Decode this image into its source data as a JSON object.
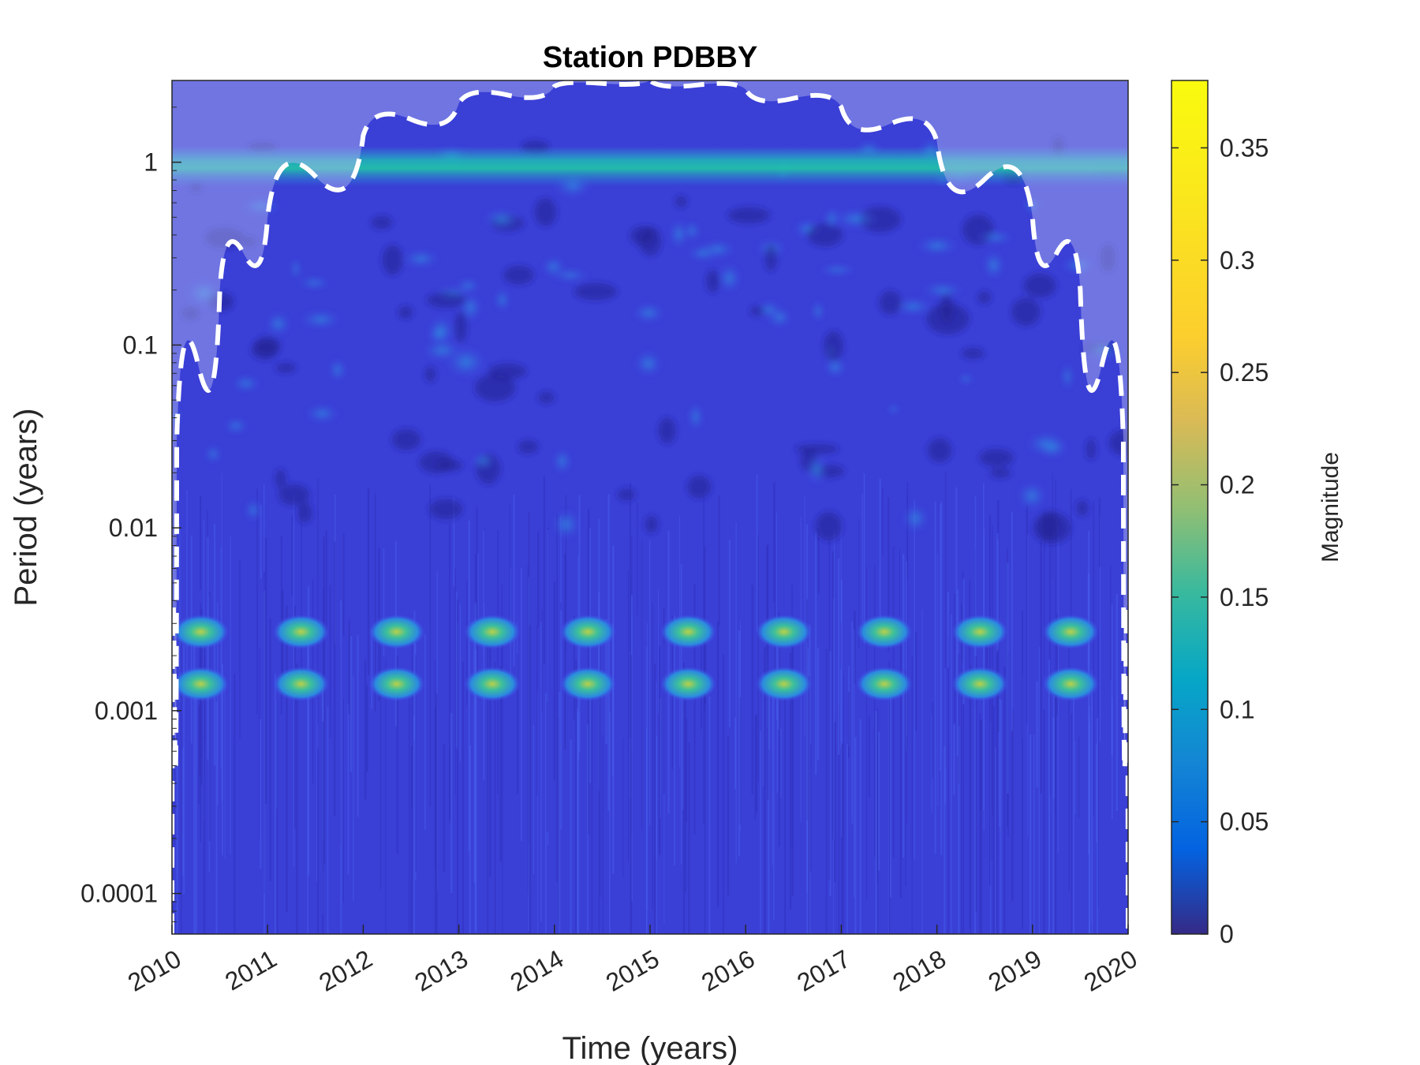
{
  "chart_data": {
    "type": "heatmap",
    "title": "Station PDBBY",
    "xlabel": "Time (years)",
    "ylabel": "Period (years)",
    "xlim": [
      2010,
      2020
    ],
    "ylim": [
      6e-05,
      2.8
    ],
    "yscale": "log",
    "x_ticks": [
      "2010",
      "2011",
      "2012",
      "2013",
      "2014",
      "2015",
      "2016",
      "2017",
      "2018",
      "2019",
      "2020"
    ],
    "y_ticks": [
      {
        "value": 0.0001,
        "label": "0.0001"
      },
      {
        "value": 0.001,
        "label": "0.001"
      },
      {
        "value": 0.01,
        "label": "0.01"
      },
      {
        "value": 0.1,
        "label": "0.1"
      },
      {
        "value": 1,
        "label": "1"
      }
    ],
    "colorbar": {
      "label": "Magnitude",
      "range": [
        0,
        0.38
      ],
      "ticks": [
        {
          "value": 0,
          "label": "0"
        },
        {
          "value": 0.05,
          "label": "0.05"
        },
        {
          "value": 0.1,
          "label": "0.1"
        },
        {
          "value": 0.15,
          "label": "0.15"
        },
        {
          "value": 0.2,
          "label": "0.2"
        },
        {
          "value": 0.25,
          "label": "0.25"
        },
        {
          "value": 0.3,
          "label": "0.3"
        },
        {
          "value": 0.35,
          "label": "0.35"
        }
      ],
      "colormap": "parula"
    },
    "cone_of_influence": {
      "style": "white dashed",
      "peak": [
        2015,
        2.8
      ],
      "points": [
        [
          2010,
          6e-05
        ],
        [
          2010.05,
          0.03
        ],
        [
          2010.5,
          0.2
        ],
        [
          2011,
          0.5
        ],
        [
          2012,
          1.4
        ],
        [
          2013,
          2.1
        ],
        [
          2014,
          2.6
        ],
        [
          2015,
          2.8
        ],
        [
          2016,
          2.5
        ],
        [
          2017,
          2.0
        ],
        [
          2018,
          1.3
        ],
        [
          2019,
          0.5
        ],
        [
          2019.5,
          0.2
        ],
        [
          2019.95,
          0.03
        ],
        [
          2020,
          6e-05
        ]
      ]
    },
    "bands": [
      {
        "period": 1.0,
        "magnitude": 0.18,
        "note": "annual band"
      },
      {
        "period": 0.0027,
        "magnitude": 0.3,
        "note": "intermittent yearly bursts"
      },
      {
        "period": 0.0014,
        "magnitude": 0.26,
        "note": "intermittent yearly bursts"
      }
    ],
    "burst_centers": [
      2010.3,
      2011.35,
      2012.35,
      2013.35,
      2014.35,
      2015.4,
      2016.4,
      2017.45,
      2018.45,
      2019.4
    ]
  }
}
